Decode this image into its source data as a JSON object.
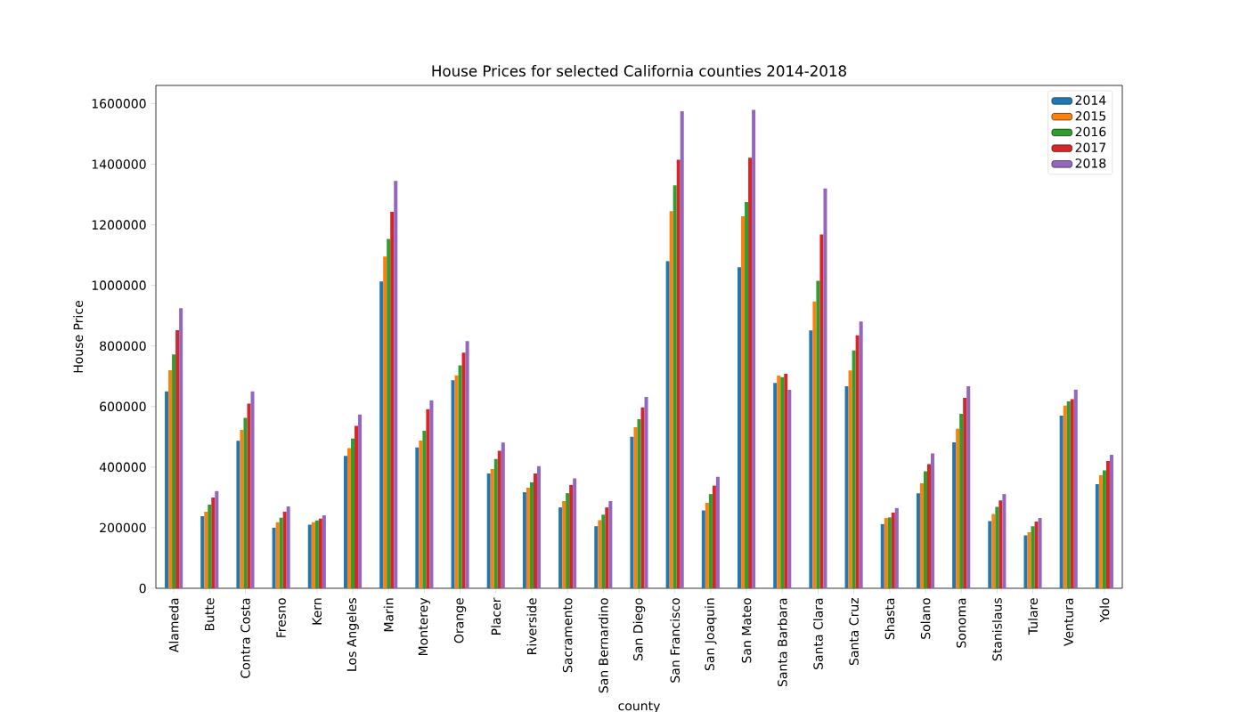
{
  "chart_data": {
    "type": "bar",
    "title": "House Prices for selected California counties 2014-2018",
    "xlabel": "county",
    "ylabel": "House Price",
    "categories": [
      "Alameda",
      "Butte",
      "Contra Costa",
      "Fresno",
      "Kern",
      "Los Angeles",
      "Marin",
      "Monterey",
      "Orange",
      "Placer",
      "Riverside",
      "Sacramento",
      "San Bernardino",
      "San Diego",
      "San Francisco",
      "San Joaquin",
      "San Mateo",
      "Santa Barbara",
      "Santa Clara",
      "Santa Cruz",
      "Shasta",
      "Solano",
      "Sonoma",
      "Stanislaus",
      "Tulare",
      "Ventura",
      "Yolo"
    ],
    "series": [
      {
        "name": "2014",
        "color": "#1f77b4",
        "values": [
          650000,
          238000,
          487000,
          200000,
          210000,
          437000,
          1013000,
          465000,
          687000,
          379000,
          317000,
          267000,
          205000,
          500000,
          1080000,
          257000,
          1060000,
          678000,
          851000,
          667000,
          212000,
          314000,
          482000,
          222000,
          175000,
          570000,
          344000
        ]
      },
      {
        "name": "2015",
        "color": "#ff7f0e",
        "values": [
          720000,
          253000,
          523000,
          218000,
          218000,
          463000,
          1095000,
          488000,
          703000,
          394000,
          332000,
          288000,
          225000,
          532000,
          1245000,
          282000,
          1228000,
          702000,
          947000,
          719000,
          232000,
          347000,
          527000,
          245000,
          185000,
          603000,
          373000
        ]
      },
      {
        "name": "2016",
        "color": "#2ca02c",
        "values": [
          772000,
          276000,
          563000,
          233000,
          224000,
          494000,
          1153000,
          520000,
          736000,
          427000,
          350000,
          314000,
          243000,
          558000,
          1330000,
          311000,
          1275000,
          697000,
          1015000,
          785000,
          234000,
          386000,
          576000,
          269000,
          205000,
          617000,
          389000
        ]
      },
      {
        "name": "2017",
        "color": "#d62728",
        "values": [
          852000,
          300000,
          610000,
          253000,
          230000,
          536000,
          1243000,
          591000,
          778000,
          454000,
          379000,
          341000,
          267000,
          597000,
          1415000,
          339000,
          1421000,
          708000,
          1168000,
          835000,
          250000,
          410000,
          629000,
          290000,
          220000,
          624000,
          420000
        ]
      },
      {
        "name": "2018",
        "color": "#9467bd",
        "values": [
          925000,
          321000,
          650000,
          270000,
          241000,
          574000,
          1345000,
          621000,
          816000,
          481000,
          403000,
          363000,
          288000,
          632000,
          1575000,
          368000,
          1580000,
          655000,
          1320000,
          881000,
          265000,
          445000,
          667000,
          311000,
          232000,
          656000,
          441000
        ]
      }
    ],
    "ylim": [
      0,
      1660000
    ],
    "yticks": [
      0,
      200000,
      400000,
      600000,
      800000,
      1000000,
      1200000,
      1400000,
      1600000
    ],
    "legend": "top right"
  }
}
